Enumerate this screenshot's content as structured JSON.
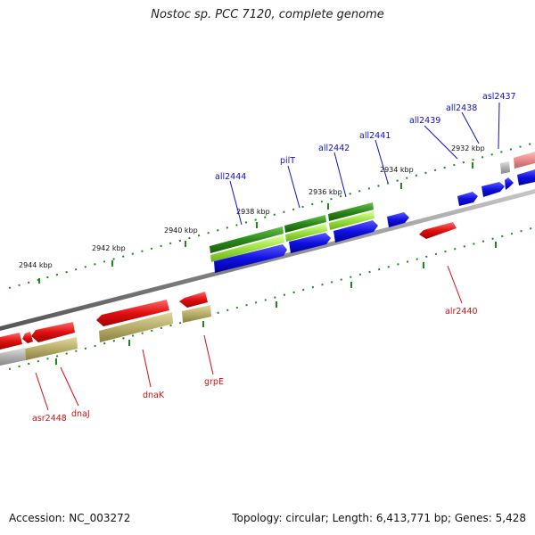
{
  "title": "Nostoc sp. PCC 7120, complete genome",
  "accession_text": "Accession: NC_003272",
  "summary_text": "Topology: circular; Length: 6,413,771 bp; Genes: 5,428",
  "colors": {
    "backbone": "#8a8a8a",
    "forward_cds": "#1010e0",
    "reverse_cds": "#e01010",
    "green_dark": "#2a8a1a",
    "green_light": "#99e03a",
    "khaki": "#b8ae6a",
    "grey_feature": "#b0b0b0",
    "pink_feature": "#e88a8a",
    "tick": "#1a8a1a",
    "forward_label": "#1010c0",
    "reverse_label": "#d01010"
  },
  "scale_labels": [
    "2932 kbp",
    "2934 kbp",
    "2936 kbp",
    "2938 kbp",
    "2940 kbp",
    "2942 kbp",
    "2944 kbp"
  ],
  "forward_genes": [
    "asl2437",
    "all2438",
    "all2439",
    "all2441",
    "all2442",
    "pilT",
    "all2444"
  ],
  "reverse_genes": [
    "alr2440",
    "grpE",
    "dnaK",
    "dnaJ",
    "asr2448"
  ]
}
